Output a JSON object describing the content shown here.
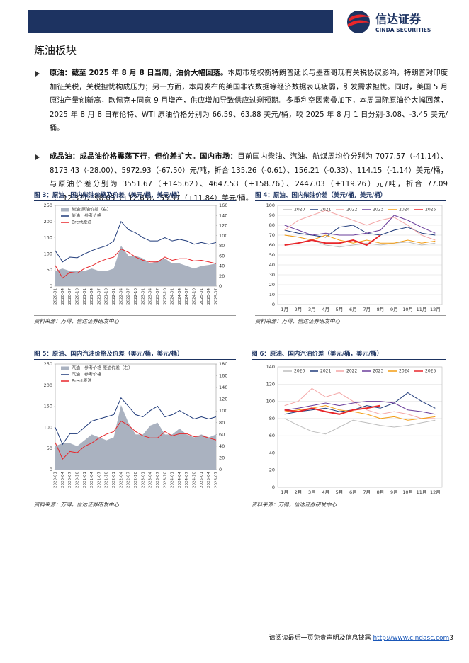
{
  "header": {
    "logo_cn": "信达证券",
    "logo_en": "CINDA SECURITIES"
  },
  "section_title": "炼油板块",
  "paragraphs": [
    {
      "lead": "原油：截至 2025 年 8 月 8 日当周，油价大幅回落。",
      "body": "本周市场权衡特朗普延长与墨西哥现有关税协议影响，特朗普对印度加征关税，关税担忧构成压力；另一方面，本周发布的美国非农数据等经济数据表现疲弱，引发需求担忧。同时，美国 5 月原油产量创新高，欧佩克+同意 9 月增产，供应增加导致供应过剩预期。多重利空因素叠加下，本周国际原油价大幅回落，2025 年 8 月 8 日布伦特、WTI 原油价格分别为 66.59、63.88 美元/桶，较 2025 年 8 月 1 日分别-3.08、-3.45 美元/桶。"
    },
    {
      "lead": "成品油：成品油价格震荡下行，但价差扩大。国内市场：",
      "body": "目前国内柴油、汽油、航煤周均价分别为 7077.57（-41.14）、8173.43（-28.00）、5972.93（-67.50）元/吨，折合 135.26（-0.61）、156.21（-0.33）、114.15（-1.14）美元/桶，与原油价差分别为 3551.67（+145.62）、4647.53（+158.76）、2447.03（+119.26）元/吨，折合 77.09（+12.37）、98.03（+12.65）、55.97（+11.84）美元/桶。"
    }
  ],
  "figures": [
    {
      "caption": "图 3：原油、国内柴油价格及价差（美元/桶，美元/桶）",
      "source": "资料来源：万得，信达证券研发中心",
      "chart_data": {
        "type": "line",
        "legend": "upper left",
        "categories": [
          "2020-01",
          "2020-04",
          "2020-07",
          "2020-10",
          "2021-01",
          "2021-04",
          "2021-07",
          "2021-10",
          "2022-01",
          "2022-04",
          "2022-07",
          "2022-10",
          "2023-01",
          "2023-04",
          "2023-07",
          "2023-10",
          "2024-01",
          "2024-04",
          "2024-07",
          "2024-10",
          "2025-01",
          "2025-04",
          "2025-07"
        ],
        "ylim": [
          0,
          250
        ],
        "yticks": [
          0,
          50,
          100,
          150,
          200,
          250
        ],
        "y2lim": [
          0,
          160
        ],
        "y2ticks": [
          0,
          20,
          40,
          60,
          80,
          100,
          120,
          140,
          160
        ],
        "series": [
          {
            "name": "柴油:原油价差（右）",
            "kind": "area",
            "axis": "y2",
            "color": "#aab2c0",
            "values": [
              30,
              35,
              30,
              30,
              30,
              35,
              30,
              30,
              35,
              80,
              60,
              60,
              55,
              45,
              50,
              55,
              45,
              45,
              40,
              35,
              40,
              42,
              45
            ]
          },
          {
            "name": "柴油：参考价格",
            "color": "#1f3a7a",
            "values": [
              110,
              75,
              90,
              88,
              100,
              110,
              118,
              125,
              140,
              200,
              175,
              165,
              150,
              140,
              140,
              150,
              140,
              145,
              140,
              130,
              135,
              130,
              135
            ]
          },
          {
            "name": "Brent原油",
            "color": "#e8262a",
            "values": [
              64,
              25,
              43,
              40,
              55,
              63,
              75,
              84,
              90,
              115,
              105,
              90,
              80,
              75,
              75,
              90,
              80,
              85,
              85,
              78,
              80,
              75,
              70
            ]
          }
        ]
      }
    },
    {
      "caption": "图 4：原油、国内柴油价差（美元/桶，美元/桶）",
      "source": "资料来源：万得，信达证券研发中心",
      "chart_data": {
        "type": "line",
        "legend": "top",
        "grid": true,
        "categories": [
          "1月",
          "2月",
          "3月",
          "4月",
          "5月",
          "6月",
          "7月",
          "8月",
          "9月",
          "10月",
          "11月",
          "12月"
        ],
        "ylim": [
          0,
          100
        ],
        "yticks": [
          0,
          10,
          20,
          30,
          40,
          50,
          60,
          70,
          80,
          90,
          100
        ],
        "series": [
          {
            "name": "2020",
            "color": "#bdbdbd",
            "values": [
              70,
              68,
              65,
              60,
              58,
              60,
              62,
              60,
              62,
              63,
              60,
              62
            ]
          },
          {
            "name": "2021",
            "color": "#1f3a7a",
            "values": [
              75,
              72,
              70,
              68,
              78,
              80,
              72,
              70,
              75,
              78,
              72,
              70
            ]
          },
          {
            "name": "2022",
            "color": "#f4a6a6",
            "values": [
              75,
              85,
              90,
              95,
              90,
              85,
              80,
              85,
              88,
              80,
              70,
              65
            ]
          },
          {
            "name": "2023",
            "color": "#6a3d9a",
            "values": [
              80,
              75,
              70,
              72,
              70,
              70,
              72,
              75,
              90,
              85,
              78,
              72
            ]
          },
          {
            "name": "2024",
            "color": "#f39c12",
            "values": [
              70,
              68,
              65,
              70,
              65,
              62,
              65,
              62,
              62,
              65,
              62,
              64
            ]
          },
          {
            "name": "2025",
            "color": "#e8262a",
            "values": [
              60,
              62,
              65,
              62,
              62,
              65,
              60,
              70,
              null,
              null,
              null,
              null
            ]
          }
        ]
      }
    },
    {
      "caption": "图 5：原油、国内汽油价格及价差（美元/桶，美元/桶）",
      "source": "资料来源：万得，信达证券研发中心",
      "chart_data": {
        "type": "line",
        "legend": "upper left",
        "categories": [
          "2020-01",
          "2020-04",
          "2020-07",
          "2020-10",
          "2021-01",
          "2021-04",
          "2021-07",
          "2021-10",
          "2022-01",
          "2022-04",
          "2022-07",
          "2022-10",
          "2023-01",
          "2023-04",
          "2023-07",
          "2023-10",
          "2024-01",
          "2024-04",
          "2024-07",
          "2024-10",
          "2025-01",
          "2025-04",
          "2025-07"
        ],
        "ylim": [
          0,
          250
        ],
        "yticks": [
          0,
          50,
          100,
          150,
          200,
          250
        ],
        "y2lim": [
          0,
          180
        ],
        "y2ticks": [
          0,
          20,
          40,
          60,
          80,
          100,
          120,
          140,
          160,
          180
        ],
        "series": [
          {
            "name": "汽油：参考价格-原油价差（右）",
            "kind": "area",
            "axis": "y2",
            "color": "#aab2c0",
            "values": [
              40,
              45,
              45,
              40,
              50,
              60,
              55,
              50,
              55,
              110,
              80,
              60,
              60,
              75,
              80,
              60,
              60,
              70,
              60,
              55,
              60,
              55,
              60
            ]
          },
          {
            "name": "汽油：参考价格",
            "color": "#1f3a7a",
            "values": [
              100,
              60,
              85,
              85,
              100,
              115,
              120,
              125,
              130,
              170,
              150,
              130,
              125,
              140,
              150,
              125,
              130,
              140,
              130,
              120,
              125,
              120,
              125
            ]
          },
          {
            "name": "Brent原油",
            "color": "#e8262a",
            "values": [
              64,
              25,
              43,
              40,
              55,
              63,
              75,
              84,
              90,
              115,
              105,
              90,
              80,
              75,
              75,
              90,
              80,
              85,
              85,
              78,
              80,
              75,
              70
            ]
          }
        ]
      }
    },
    {
      "caption": "图 6：原油、国内汽油价差（美元/桶，美元/桶）",
      "source": "资料来源：万得，信达证券研发中心",
      "chart_data": {
        "type": "line",
        "legend": "top",
        "grid": true,
        "categories": [
          "1月",
          "2月",
          "3月",
          "4月",
          "5月",
          "6月",
          "7月",
          "8月",
          "9月",
          "10月",
          "11月",
          "12月"
        ],
        "ylim": [
          0,
          140
        ],
        "yticks": [
          0,
          20,
          40,
          60,
          80,
          100,
          120,
          140
        ],
        "series": [
          {
            "name": "2020",
            "color": "#bdbdbd",
            "values": [
              80,
              72,
              65,
              62,
              70,
              78,
              75,
              72,
              70,
              72,
              75,
              78
            ]
          },
          {
            "name": "2021",
            "color": "#1f3a7a",
            "values": [
              85,
              88,
              90,
              92,
              88,
              90,
              95,
              92,
              98,
              110,
              100,
              92
            ]
          },
          {
            "name": "2022",
            "color": "#f4a6a6",
            "values": [
              95,
              100,
              115,
              105,
              110,
              100,
              90,
              85,
              88,
              85,
              80,
              80
            ]
          },
          {
            "name": "2023",
            "color": "#6a3d9a",
            "values": [
              90,
              92,
              95,
              98,
              95,
              98,
              100,
              100,
              98,
              90,
              88,
              85
            ]
          },
          {
            "name": "2024",
            "color": "#f39c12",
            "values": [
              88,
              90,
              92,
              95,
              90,
              88,
              85,
              80,
              82,
              78,
              80,
              82
            ]
          },
          {
            "name": "2025",
            "color": "#e8262a",
            "values": [
              90,
              88,
              92,
              88,
              85,
              90,
              92,
              95,
              null,
              null,
              null,
              null
            ]
          }
        ]
      }
    }
  ],
  "footer": {
    "text": "请阅读最后一页免责声明及信息披露",
    "link": "http://www.cindasc.com",
    "page": "3"
  }
}
